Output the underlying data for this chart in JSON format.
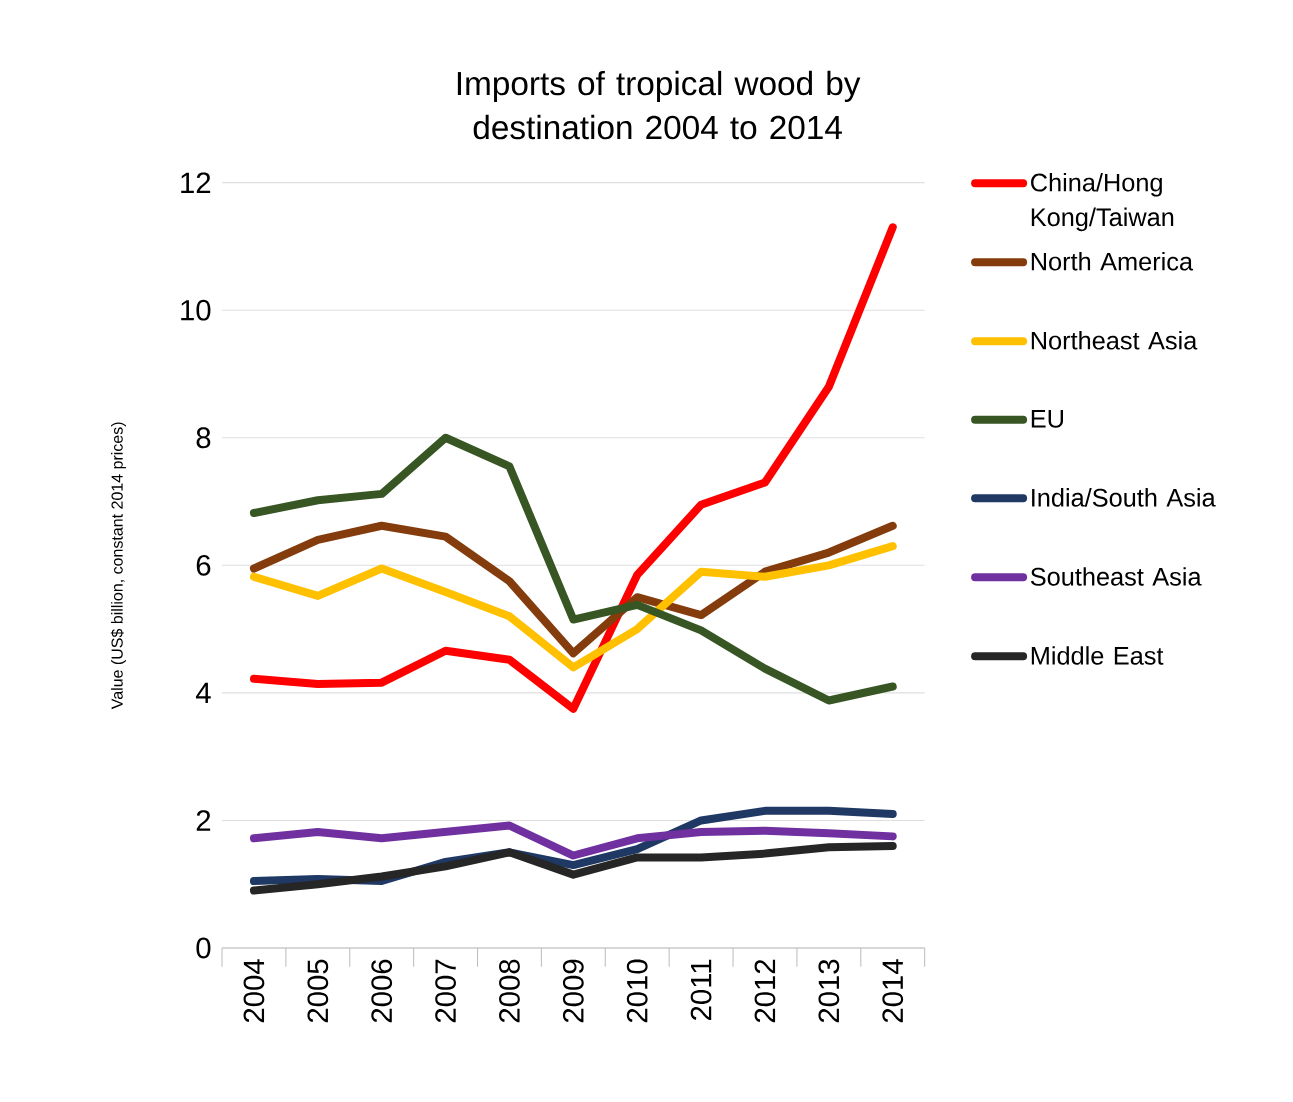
{
  "chart_data": {
    "type": "line",
    "title": "Imports of tropical wood by destination 2004 to 2014",
    "ylabel": "Value (US$ billion, constant 2014 prices)",
    "categories": [
      "2004",
      "2005",
      "2006",
      "2007",
      "2008",
      "2009",
      "2010",
      "2011",
      "2012",
      "2013",
      "2014"
    ],
    "ylim": [
      0,
      12
    ],
    "yticks": [
      0,
      2,
      4,
      6,
      8,
      10,
      12
    ],
    "grid": "y",
    "legend": "right",
    "marker": "none",
    "line_style": "solid",
    "series": [
      {
        "name": "China/Hong Kong/Taiwan",
        "color": "#ff0000",
        "values": [
          4.22,
          4.14,
          4.16,
          4.66,
          4.52,
          3.75,
          5.85,
          6.95,
          7.3,
          8.8,
          11.3
        ]
      },
      {
        "name": "North America",
        "color": "#843c0c",
        "values": [
          5.95,
          6.4,
          6.62,
          6.45,
          5.75,
          4.62,
          5.5,
          5.22,
          5.9,
          6.2,
          6.62
        ]
      },
      {
        "name": "Northeast Asia",
        "color": "#ffc000",
        "values": [
          5.82,
          5.52,
          5.95,
          5.58,
          5.2,
          4.4,
          5.0,
          5.9,
          5.82,
          6.0,
          6.3
        ]
      },
      {
        "name": "EU",
        "color": "#375623",
        "values": [
          6.82,
          7.02,
          7.12,
          8.0,
          7.55,
          5.15,
          5.38,
          4.98,
          4.38,
          3.88,
          4.1
        ]
      },
      {
        "name": "India/South Asia",
        "color": "#1f3864",
        "values": [
          1.05,
          1.08,
          1.05,
          1.35,
          1.5,
          1.3,
          1.55,
          2.0,
          2.15,
          2.15,
          2.1
        ]
      },
      {
        "name": "Southeast Asia",
        "color": "#7030a0",
        "values": [
          1.72,
          1.82,
          1.72,
          1.82,
          1.92,
          1.45,
          1.72,
          1.82,
          1.84,
          1.8,
          1.75
        ]
      },
      {
        "name": "Middle East",
        "color": "#262626",
        "values": [
          0.9,
          1.0,
          1.12,
          1.28,
          1.5,
          1.15,
          1.42,
          1.42,
          1.48,
          1.58,
          1.6
        ]
      }
    ]
  }
}
